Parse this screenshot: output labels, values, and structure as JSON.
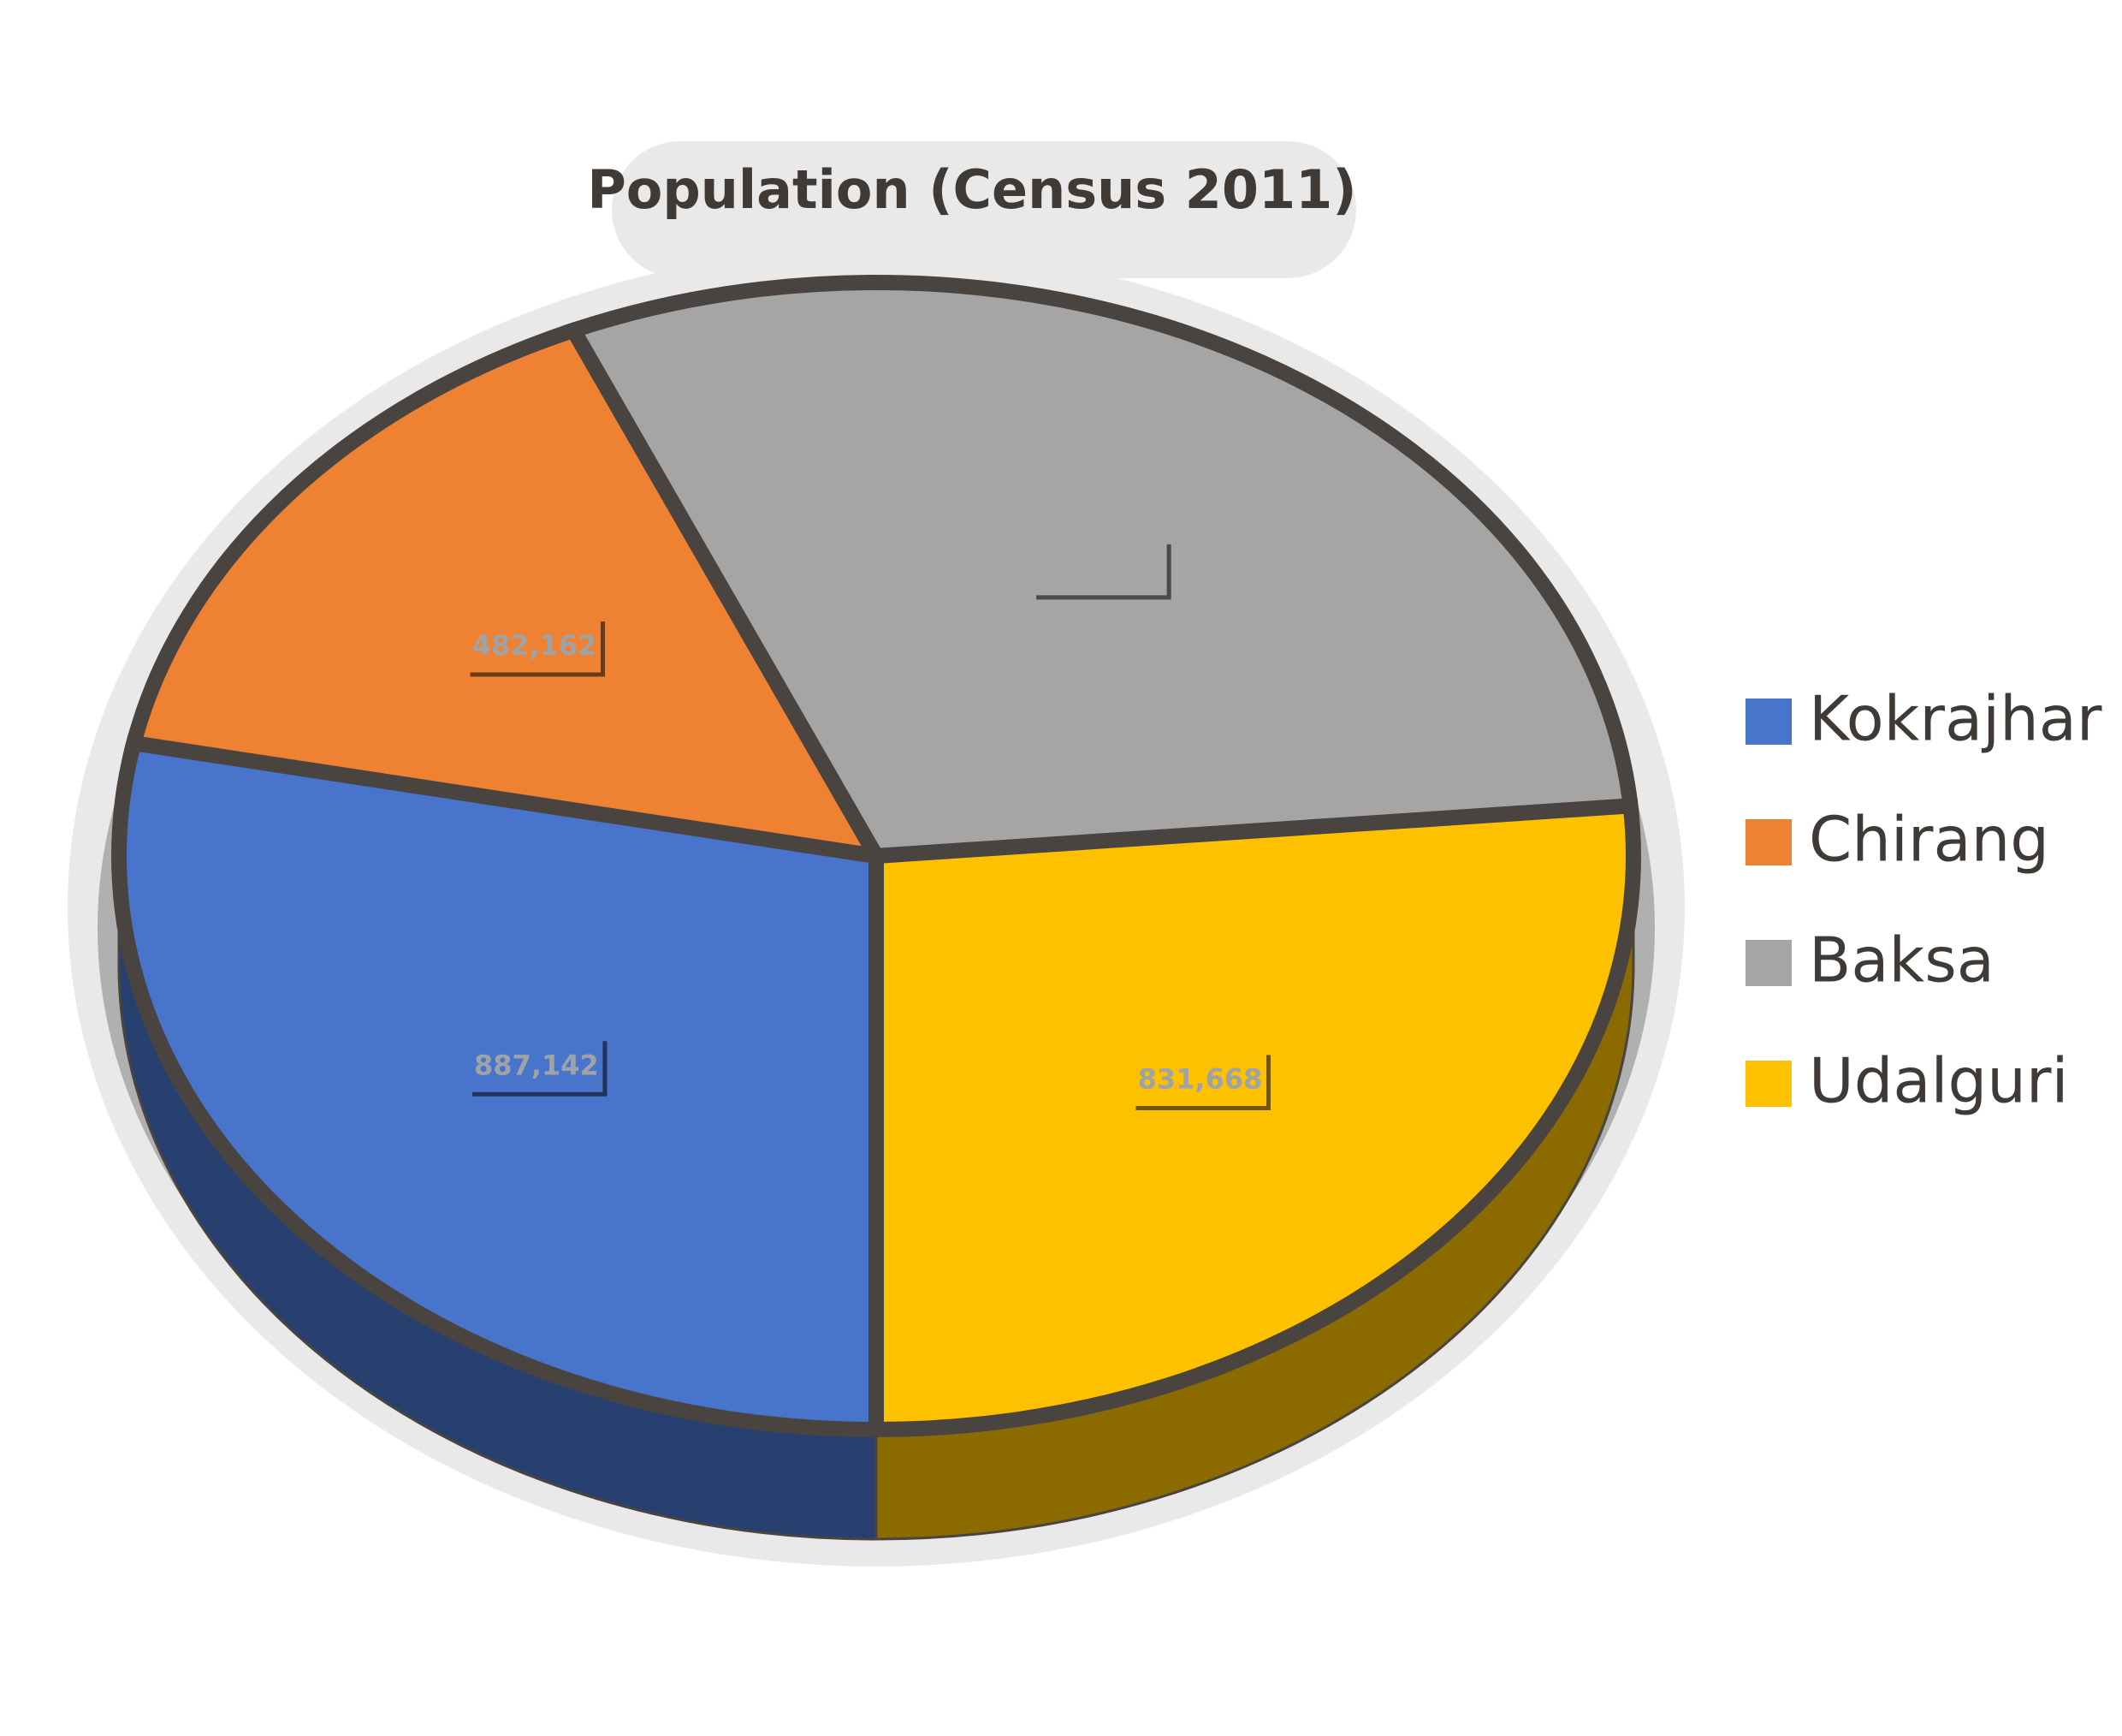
{
  "chart_data": {
    "type": "pie3d",
    "title": "Population (Census 2011)",
    "categories": [
      "Kokrajhar",
      "Chirang",
      "Baksa",
      "Udalguri"
    ],
    "values": [
      887142,
      482162,
      950075,
      831668
    ],
    "value_labels": [
      "887,142",
      "482,162",
      null,
      "831,668"
    ],
    "colors": [
      "#4874cb",
      "#ef8133",
      "#a5a5a5",
      "#fdc100"
    ],
    "legend": "right"
  }
}
